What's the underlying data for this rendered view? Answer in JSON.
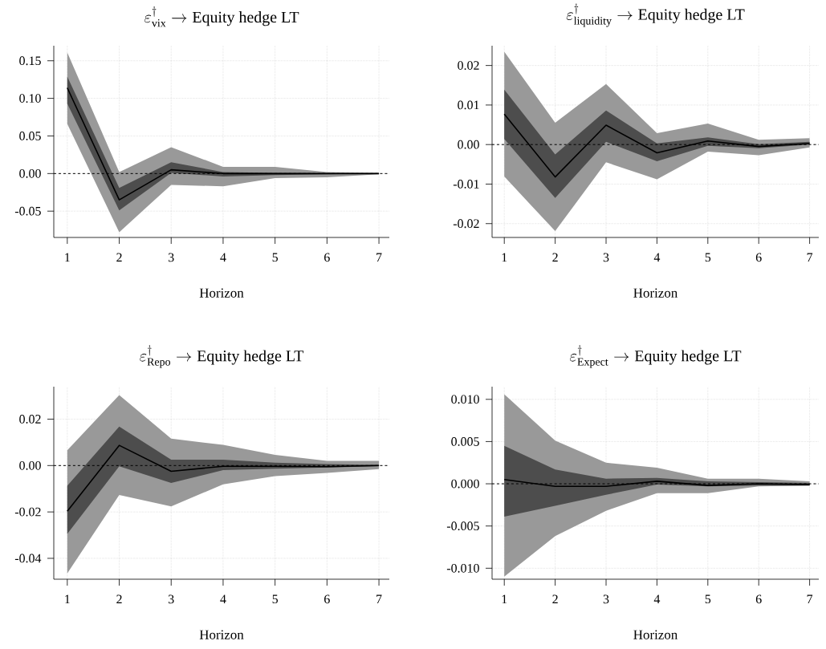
{
  "chart_data": [
    {
      "type": "line",
      "title": "\\varepsilon^{\\dagger}_{\\text{vix}} \\rightarrow \\text{Equity hedge LT}",
      "xlabel": "Horizon",
      "x": [
        1,
        2,
        3,
        4,
        5,
        6,
        7
      ],
      "xlim": [
        0.74,
        7.2
      ],
      "xticks": [
        1,
        2,
        3,
        4,
        5,
        6,
        7
      ],
      "ylim": [
        -0.085,
        0.17
      ],
      "yticks": [
        {
          "value": -0.05,
          "label": "-0.05"
        },
        {
          "value": 0,
          "label": "0.00"
        },
        0.05,
        {
          "value": 0.1,
          "label": "0.10"
        },
        0.15
      ],
      "grid": true,
      "ref_lines": [
        {
          "axis": "y",
          "value": 0,
          "color": "#000000",
          "line_style": "dashed"
        }
      ],
      "series": [
        {
          "color": "#999999",
          "values": [
            null,
            null,
            null,
            null,
            null,
            null,
            null
          ],
          "lower": [
            0.066,
            -0.078,
            -0.015,
            -0.017,
            -0.006,
            -0.005,
            -0.001
          ],
          "upper": [
            0.161,
            0.002,
            0.035,
            0.009,
            0.009,
            0.002,
            0.001
          ]
        },
        {
          "color": "#4d4d4d",
          "values": [
            null,
            null,
            null,
            null,
            null,
            null,
            null
          ],
          "lower": [
            0.093,
            -0.049,
            0.001,
            -0.004,
            -0.002,
            -0.001,
            0
          ],
          "upper": [
            0.129,
            -0.019,
            0.015,
            0.002,
            0.001,
            0.0005,
            0
          ]
        },
        {
          "color": "#000000",
          "values": [
            0.114,
            -0.035,
            0.005,
            0,
            0,
            0,
            0
          ]
        }
      ]
    },
    {
      "type": "line",
      "title": "\\varepsilon^{\\dagger}_{\\text{liquidity}} \\rightarrow \\text{Equity hedge LT}",
      "xlabel": "Horizon",
      "x": [
        1,
        2,
        3,
        4,
        5,
        6,
        7
      ],
      "xlim": [
        0.76,
        7.18
      ],
      "xticks": [
        1,
        2,
        3,
        4,
        5,
        6,
        7
      ],
      "ylim": [
        -0.0235,
        0.025
      ],
      "yticks": [
        -0.02,
        -0.01,
        {
          "value": 0,
          "label": "0.00"
        },
        0.01,
        0.02
      ],
      "grid": true,
      "ref_lines": [
        {
          "axis": "y",
          "value": 0,
          "color": "#000000",
          "line_style": "dashed"
        }
      ],
      "series": [
        {
          "color": "#999999",
          "values": [
            null,
            null,
            null,
            null,
            null,
            null,
            null
          ],
          "lower": [
            -0.0081,
            -0.0219,
            -0.0045,
            -0.0088,
            -0.0018,
            -0.0027,
            -0.0007
          ],
          "upper": [
            0.0235,
            0.0055,
            0.0153,
            0.0029,
            0.0053,
            0.0012,
            0.0016
          ]
        },
        {
          "color": "#4d4d4d",
          "values": [
            null,
            null,
            null,
            null,
            null,
            null,
            null
          ],
          "lower": [
            0.0014,
            -0.0135,
            0.0007,
            -0.0042,
            -0.0003,
            -0.0009,
            0
          ],
          "upper": [
            0.0139,
            -0.0025,
            0.0086,
            0.0003,
            0.0018,
            0.0001,
            0.0007
          ]
        },
        {
          "color": "#000000",
          "values": [
            0.0077,
            -0.0082,
            0.0049,
            -0.0021,
            0.0009,
            -0.0005,
            0.0003
          ]
        }
      ]
    },
    {
      "type": "line",
      "title": "\\varepsilon^{\\dagger}_{\\text{Repo}} \\rightarrow \\text{Equity hedge LT}",
      "xlabel": "Horizon",
      "x": [
        1,
        2,
        3,
        4,
        5,
        6,
        7
      ],
      "xlim": [
        0.74,
        7.2
      ],
      "xticks": [
        1,
        2,
        3,
        4,
        5,
        6,
        7
      ],
      "ylim": [
        -0.049,
        0.034
      ],
      "yticks": [
        -0.04,
        -0.02,
        {
          "value": 0,
          "label": "0.00"
        },
        0.02
      ],
      "grid": true,
      "ref_lines": [
        {
          "axis": "y",
          "value": 0,
          "color": "#000000",
          "line_style": "dashed"
        }
      ],
      "series": [
        {
          "color": "#999999",
          "values": [
            null,
            null,
            null,
            null,
            null,
            null,
            null
          ],
          "lower": [
            -0.0465,
            -0.0127,
            -0.0176,
            -0.0081,
            -0.0046,
            -0.0032,
            -0.0015
          ],
          "upper": [
            0.0066,
            0.0304,
            0.0116,
            0.0089,
            0.0046,
            0.002,
            0.002
          ]
        },
        {
          "color": "#4d4d4d",
          "values": [
            null,
            null,
            null,
            null,
            null,
            null,
            null
          ],
          "lower": [
            -0.0295,
            -0.0003,
            -0.0075,
            -0.002,
            -0.0014,
            -0.0008,
            -0.0003
          ],
          "upper": [
            -0.0087,
            0.0168,
            0.0025,
            0.0025,
            0.0012,
            0.0006,
            0.0003
          ]
        },
        {
          "color": "#000000",
          "values": [
            -0.0197,
            0.0087,
            -0.0025,
            -0.0003,
            -0.0003,
            -0.0005,
            0
          ]
        }
      ]
    },
    {
      "type": "line",
      "title": "\\varepsilon^{\\dagger}_{\\text{Expect}} \\rightarrow \\text{Equity hedge LT}",
      "xlabel": "Horizon",
      "x": [
        1,
        2,
        3,
        4,
        5,
        6,
        7
      ],
      "xlim": [
        0.76,
        7.18
      ],
      "xticks": [
        1,
        2,
        3,
        4,
        5,
        6,
        7
      ],
      "ylim": [
        -0.0113,
        0.0115
      ],
      "yticks": [
        {
          "value": -0.01,
          "label": "-0.010"
        },
        -0.005,
        {
          "value": 0,
          "label": "0.000"
        },
        0.005,
        {
          "value": 0.01,
          "label": "0.010"
        }
      ],
      "grid": true,
      "ref_lines": [
        {
          "axis": "y",
          "value": 0,
          "color": "#000000",
          "line_style": "dashed"
        }
      ],
      "series": [
        {
          "color": "#999999",
          "values": [
            null,
            null,
            null,
            null,
            null,
            null,
            null
          ],
          "lower": [
            -0.011,
            -0.0062,
            -0.0032,
            -0.0011,
            -0.0011,
            -0.0003,
            -0.0002
          ],
          "upper": [
            0.0106,
            0.0051,
            0.0025,
            0.0019,
            0.0006,
            0.0006,
            0.0003
          ]
        },
        {
          "color": "#4d4d4d",
          "values": [
            null,
            null,
            null,
            null,
            null,
            null,
            null
          ],
          "lower": [
            -0.0039,
            -0.0026,
            -0.0013,
            -0.0001,
            -0.0003,
            -0.0002,
            -0.0002
          ],
          "upper": [
            0.0045,
            0.0017,
            0.0006,
            0.0007,
            0.0003,
            0.0002,
            0.0001
          ]
        },
        {
          "color": "#000000",
          "values": [
            0.0005,
            -0.0003,
            -0.0003,
            0.0003,
            -0.0002,
            0,
            -0.0001
          ]
        }
      ]
    }
  ]
}
